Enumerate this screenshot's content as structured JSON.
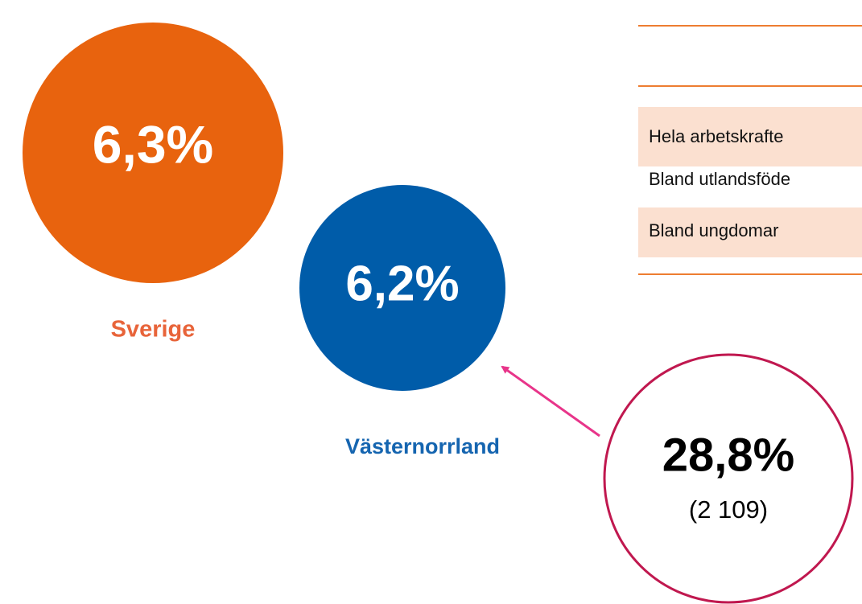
{
  "circles": [
    {
      "value": "6,3%",
      "label": "Sverige"
    },
    {
      "value": "6,2%",
      "label": "Västernorrland"
    },
    {
      "value": "28,8%",
      "note": "(2 109)"
    }
  ],
  "table": {
    "rows": [
      "Hela arbetskrafte",
      "Bland utlandsföde",
      "Bland ungdomar"
    ]
  }
}
